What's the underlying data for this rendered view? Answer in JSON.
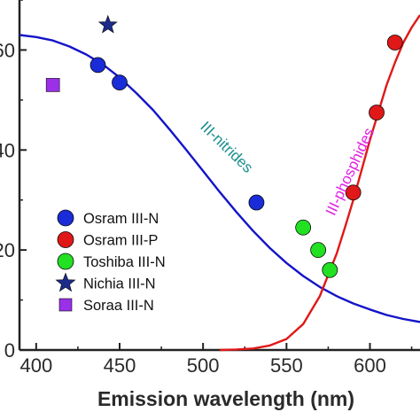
{
  "chart_data": {
    "type": "scatter",
    "xlabel": "Emission wavelength (nm)",
    "ylabel": "",
    "xlim": [
      390,
      630
    ],
    "ylim": [
      0,
      70
    ],
    "x_ticks": [
      400,
      450,
      500,
      550,
      600
    ],
    "x_tick_labels": [
      "400",
      "450",
      "500",
      "550",
      "600"
    ],
    "y_ticks": [
      0,
      20,
      40,
      60
    ],
    "y_tick_labels": [
      "0",
      "20",
      "40",
      "60"
    ],
    "legend_position": "left",
    "series": [
      {
        "name": "Osram III-N",
        "marker": "circle",
        "color": "#1a2bd8",
        "x": [
          437,
          450,
          532
        ],
        "y": [
          57,
          53.5,
          29.5
        ]
      },
      {
        "name": "Osram III-P",
        "marker": "circle",
        "color": "#e01818",
        "x": [
          590,
          604,
          615
        ],
        "y": [
          31.5,
          47.5,
          61.5
        ]
      },
      {
        "name": "Toshiba III-N",
        "marker": "circle",
        "color": "#22e022",
        "x": [
          560,
          569,
          576
        ],
        "y": [
          24.5,
          20,
          16
        ]
      },
      {
        "name": "Nichia III-N",
        "marker": "star",
        "color": "#1c2a8a",
        "x": [
          443
        ],
        "y": [
          65
        ]
      },
      {
        "name": "Soraa III-N",
        "marker": "square",
        "color": "#9a30e8",
        "x": [
          410
        ],
        "y": [
          53
        ]
      }
    ],
    "curves": [
      {
        "label": "III-nitrides",
        "color": "#1414c8",
        "x": [
          390,
          400,
          410,
          420,
          430,
          440,
          450,
          460,
          470,
          480,
          490,
          500,
          510,
          520,
          530,
          540,
          550,
          560,
          570,
          580,
          590,
          600,
          610,
          620,
          630
        ],
        "y": [
          63,
          62.6,
          61.9,
          60.7,
          59.1,
          57.1,
          54.5,
          51.4,
          48,
          44.1,
          40,
          35.8,
          31.6,
          27.6,
          23.8,
          20.4,
          17.4,
          14.8,
          12.6,
          10.8,
          9.3,
          8.1,
          7,
          6.2,
          5.6
        ]
      },
      {
        "label": "III-phosphides",
        "color": "#e01818",
        "x": [
          510,
          520,
          530,
          540,
          550,
          560,
          570,
          580,
          585,
          590,
          595,
          600,
          605,
          610,
          615,
          620,
          625,
          630
        ],
        "y": [
          0,
          0.1,
          0.3,
          0.9,
          2.2,
          5.2,
          10.8,
          19.2,
          24.5,
          30,
          36,
          42,
          47.5,
          53,
          57.5,
          61.5,
          64.5,
          67
        ]
      }
    ],
    "annotations": [
      {
        "text": "III-nitrides",
        "color": "#1a8e8e"
      },
      {
        "text": "III-phosphides",
        "color": "#e020e0"
      }
    ]
  }
}
